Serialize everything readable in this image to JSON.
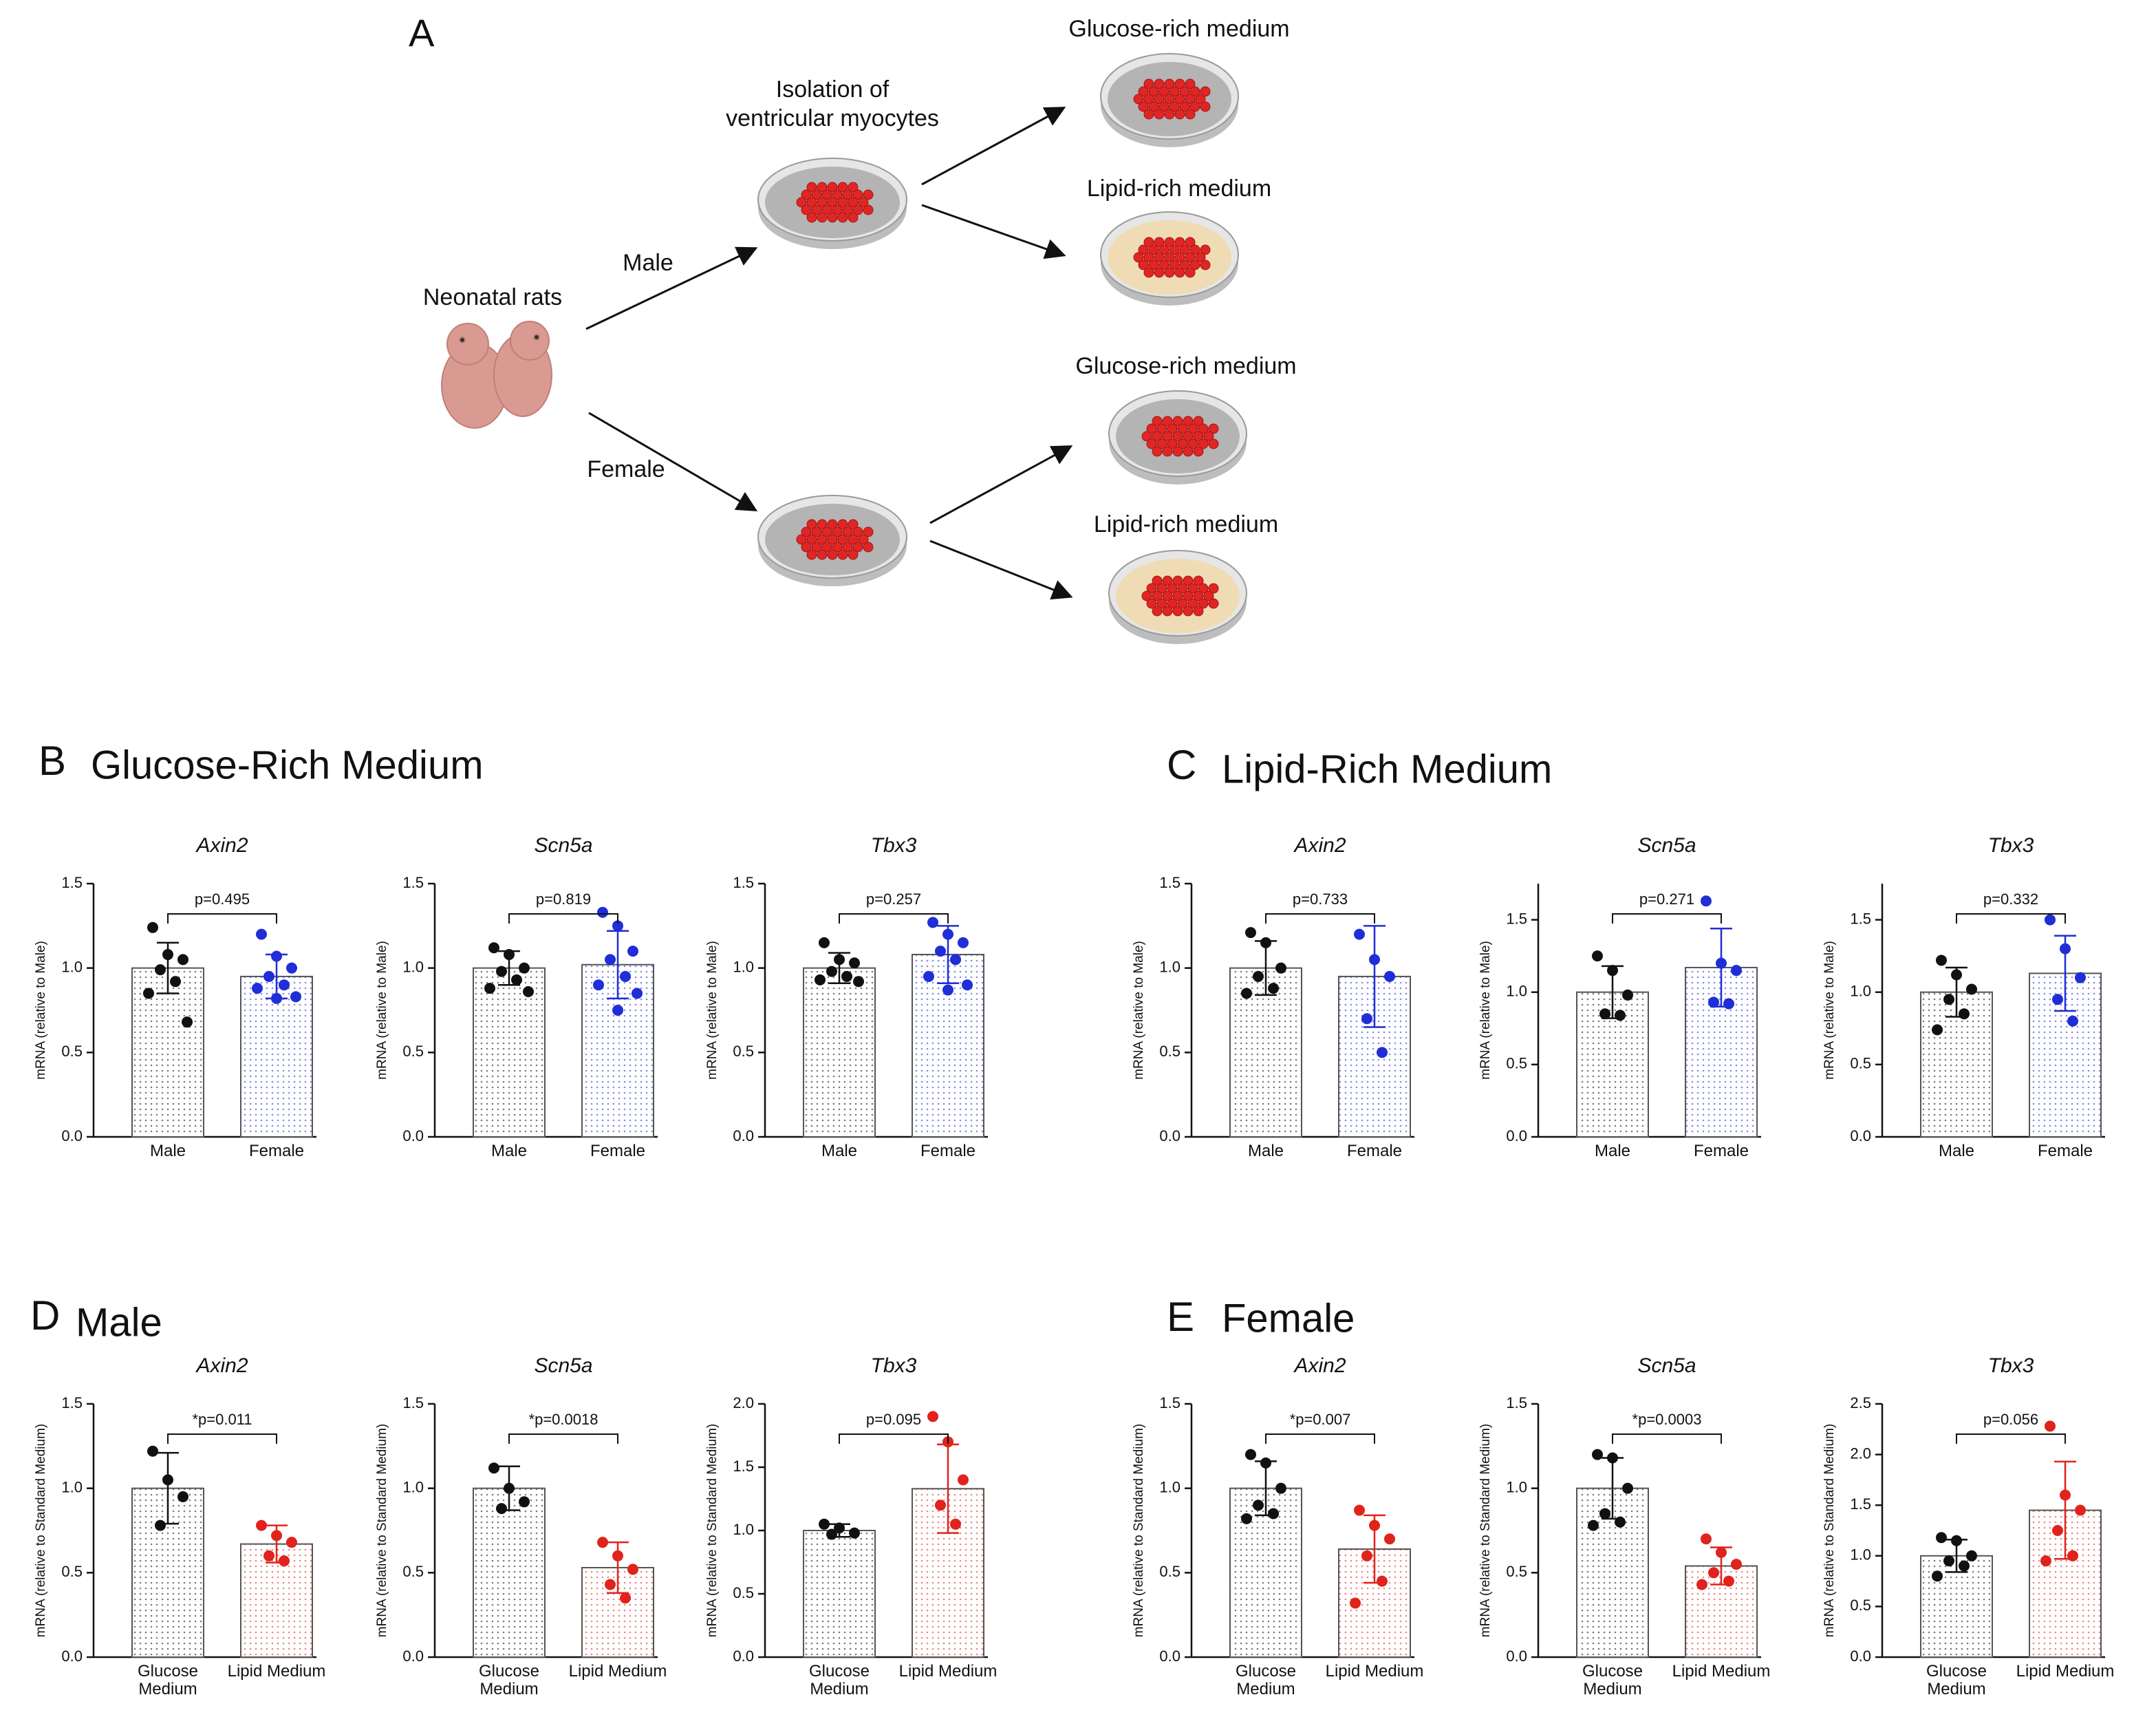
{
  "diagram": {
    "panel": "A",
    "source": "Neonatal rats",
    "branches": [
      "Male",
      "Female"
    ],
    "isolation": [
      "Isolation of",
      "ventricular myocytes"
    ],
    "media": [
      "Glucose-rich medium",
      "Lipid-rich medium",
      "Glucose-rich medium",
      "Lipid-rich medium"
    ]
  },
  "panels": [
    {
      "letter": "B",
      "title": "Glucose-Rich Medium"
    },
    {
      "letter": "C",
      "title": "Lipid-Rich Medium"
    },
    {
      "letter": "D",
      "title": "Male"
    },
    {
      "letter": "E",
      "title": "Female"
    }
  ],
  "chart_data": [
    {
      "type": "bar",
      "title": "Axin2",
      "annotation": "p=0.495",
      "ylabel": "mRNA  (relative to Male)",
      "categories": [
        "Male",
        "Female"
      ],
      "values": [
        1.0,
        0.95
      ],
      "errors": [
        0.15,
        0.13
      ],
      "points": [
        [
          1.24,
          1.08,
          1.05,
          0.99,
          0.92,
          0.85,
          0.68
        ],
        [
          1.2,
          1.07,
          1.0,
          0.95,
          0.9,
          0.88,
          0.83,
          0.82
        ]
      ],
      "colors": [
        "#111111",
        "#1f2ed6"
      ],
      "ylim": [
        0,
        1.5
      ],
      "yticks": [
        {
          "value": 0,
          "label": "0.0"
        },
        0.5,
        {
          "value": 1,
          "label": "1.0"
        },
        1.5
      ]
    },
    {
      "type": "bar",
      "title": "Scn5a",
      "annotation": "p=0.819",
      "ylabel": "mRNA  (relative to Male)",
      "categories": [
        "Male",
        "Female"
      ],
      "values": [
        1.0,
        1.02
      ],
      "errors": [
        0.1,
        0.2
      ],
      "points": [
        [
          1.12,
          1.08,
          1.0,
          0.98,
          0.93,
          0.88,
          0.86
        ],
        [
          1.33,
          1.25,
          1.1,
          1.05,
          0.95,
          0.9,
          0.85,
          0.75
        ]
      ],
      "colors": [
        "#111111",
        "#1f2ed6"
      ],
      "ylim": [
        0,
        1.5
      ],
      "yticks": [
        {
          "value": 0,
          "label": "0.0"
        },
        0.5,
        {
          "value": 1,
          "label": "1.0"
        },
        1.5
      ]
    },
    {
      "type": "bar",
      "title": "Tbx3",
      "annotation": "p=0.257",
      "ylabel": "mRNA  (relative to Male)",
      "categories": [
        "Male",
        "Female"
      ],
      "values": [
        1.0,
        1.08
      ],
      "errors": [
        0.09,
        0.17
      ],
      "points": [
        [
          1.15,
          1.05,
          1.03,
          0.98,
          0.95,
          0.93,
          0.92
        ],
        [
          1.27,
          1.2,
          1.15,
          1.1,
          1.05,
          0.95,
          0.9,
          0.87
        ]
      ],
      "colors": [
        "#111111",
        "#1f2ed6"
      ],
      "ylim": [
        0,
        1.5
      ],
      "yticks": [
        {
          "value": 0,
          "label": "0.0"
        },
        0.5,
        {
          "value": 1,
          "label": "1.0"
        },
        1.5
      ]
    },
    {
      "type": "bar",
      "title": "Axin2",
      "annotation": "p=0.733",
      "ylabel": "mRNA  (relative to Male)",
      "categories": [
        "Male",
        "Female"
      ],
      "values": [
        1.0,
        0.95
      ],
      "errors": [
        0.16,
        0.3
      ],
      "points": [
        [
          1.21,
          1.15,
          1.0,
          0.95,
          0.88,
          0.85
        ],
        [
          1.2,
          1.05,
          0.95,
          0.7,
          0.5
        ]
      ],
      "colors": [
        "#111111",
        "#1f2ed6"
      ],
      "ylim": [
        0,
        1.5
      ],
      "yticks": [
        {
          "value": 0,
          "label": "0.0"
        },
        0.5,
        {
          "value": 1,
          "label": "1.0"
        },
        1.5
      ]
    },
    {
      "type": "bar",
      "title": "Scn5a",
      "annotation": "p=0.271",
      "ylabel": "mRNA  (relative to Male)",
      "categories": [
        "Male",
        "Female"
      ],
      "values": [
        1.0,
        1.17
      ],
      "errors": [
        0.18,
        0.27
      ],
      "points": [
        [
          1.25,
          1.15,
          0.98,
          0.85,
          0.84
        ],
        [
          1.63,
          1.2,
          1.15,
          0.93,
          0.92
        ]
      ],
      "colors": [
        "#111111",
        "#1f2ed6"
      ],
      "ylim": [
        0,
        1.75
      ],
      "yticks": [
        {
          "value": 0,
          "label": "0.0"
        },
        0.5,
        {
          "value": 1,
          "label": "1.0"
        },
        1.5
      ]
    },
    {
      "type": "bar",
      "title": "Tbx3",
      "annotation": "p=0.332",
      "ylabel": "mRNA  (relative to Male)",
      "categories": [
        "Male",
        "Female"
      ],
      "values": [
        1.0,
        1.13
      ],
      "errors": [
        0.17,
        0.26
      ],
      "points": [
        [
          1.22,
          1.12,
          1.02,
          0.95,
          0.85,
          0.74
        ],
        [
          1.5,
          1.3,
          1.1,
          0.95,
          0.8
        ]
      ],
      "colors": [
        "#111111",
        "#1f2ed6"
      ],
      "ylim": [
        0,
        1.75
      ],
      "yticks": [
        {
          "value": 0,
          "label": "0.0"
        },
        0.5,
        {
          "value": 1,
          "label": "1.0"
        },
        1.5
      ]
    },
    {
      "type": "bar",
      "title": "Axin2",
      "annotation": "*p=0.011",
      "ylabel": "mRNA  (relative to Standard Medium)",
      "categories": [
        "Glucose Medium",
        "Lipid Medium"
      ],
      "values": [
        1.0,
        0.67
      ],
      "errors": [
        0.21,
        0.11
      ],
      "points": [
        [
          1.22,
          1.05,
          0.95,
          0.78
        ],
        [
          0.78,
          0.72,
          0.68,
          0.6,
          0.57
        ]
      ],
      "colors": [
        "#111111",
        "#e0231c"
      ],
      "ylim": [
        0,
        1.5
      ],
      "yticks": [
        {
          "value": 0,
          "label": "0.0"
        },
        0.5,
        {
          "value": 1,
          "label": "1.0"
        },
        1.5
      ]
    },
    {
      "type": "bar",
      "title": "Scn5a",
      "annotation": "*p=0.0018",
      "ylabel": "mRNA  (relative to Standard Medium)",
      "categories": [
        "Glucose Medium",
        "Lipid Medium"
      ],
      "values": [
        1.0,
        0.53
      ],
      "errors": [
        0.13,
        0.15
      ],
      "points": [
        [
          1.12,
          1.0,
          0.92,
          0.88
        ],
        [
          0.68,
          0.6,
          0.52,
          0.43,
          0.35
        ]
      ],
      "colors": [
        "#111111",
        "#e0231c"
      ],
      "ylim": [
        0,
        1.5
      ],
      "yticks": [
        {
          "value": 0,
          "label": "0.0"
        },
        0.5,
        {
          "value": 1,
          "label": "1.0"
        },
        1.5
      ]
    },
    {
      "type": "bar",
      "title": "Tbx3",
      "annotation": "p=0.095",
      "ylabel": "mRNA  (relative to Standard Medium)",
      "categories": [
        "Glucose Medium",
        "Lipid Medium"
      ],
      "values": [
        1.0,
        1.33
      ],
      "errors": [
        0.05,
        0.35
      ],
      "points": [
        [
          1.05,
          1.02,
          0.98,
          0.97
        ],
        [
          1.9,
          1.7,
          1.4,
          1.2,
          1.05
        ]
      ],
      "colors": [
        "#111111",
        "#e0231c"
      ],
      "ylim": [
        0,
        2
      ],
      "yticks": [
        {
          "value": 0,
          "label": "0.0"
        },
        0.5,
        {
          "value": 1,
          "label": "1.0"
        },
        1.5,
        {
          "value": 2,
          "label": "2.0"
        }
      ]
    },
    {
      "type": "bar",
      "title": "Axin2",
      "annotation": "*p=0.007",
      "ylabel": "mRNA  (relative to Standard Medium)",
      "categories": [
        "Glucose Medium",
        "Lipid Medium"
      ],
      "values": [
        1.0,
        0.64
      ],
      "errors": [
        0.16,
        0.2
      ],
      "points": [
        [
          1.2,
          1.15,
          1.0,
          0.9,
          0.85,
          0.82
        ],
        [
          0.87,
          0.78,
          0.7,
          0.6,
          0.45,
          0.32
        ]
      ],
      "colors": [
        "#111111",
        "#e0231c"
      ],
      "ylim": [
        0,
        1.5
      ],
      "yticks": [
        {
          "value": 0,
          "label": "0.0"
        },
        0.5,
        {
          "value": 1,
          "label": "1.0"
        },
        1.5
      ]
    },
    {
      "type": "bar",
      "title": "Scn5a",
      "annotation": "*p=0.0003",
      "ylabel": "mRNA  (relative to Standard Medium)",
      "categories": [
        "Glucose Medium",
        "Lipid Medium"
      ],
      "values": [
        1.0,
        0.54
      ],
      "errors": [
        0.18,
        0.11
      ],
      "points": [
        [
          1.2,
          1.18,
          1.0,
          0.85,
          0.8,
          0.78
        ],
        [
          0.7,
          0.62,
          0.55,
          0.5,
          0.45,
          0.43
        ]
      ],
      "colors": [
        "#111111",
        "#e0231c"
      ],
      "ylim": [
        0,
        1.5
      ],
      "yticks": [
        {
          "value": 0,
          "label": "0.0"
        },
        0.5,
        {
          "value": 1,
          "label": "1.0"
        },
        1.5
      ]
    },
    {
      "type": "bar",
      "title": "Tbx3",
      "annotation": "p=0.056",
      "ylabel": "mRNA  (relative to Standard Medium)",
      "categories": [
        "Glucose Medium",
        "Lipid Medium"
      ],
      "values": [
        1.0,
        1.45
      ],
      "errors": [
        0.16,
        0.48
      ],
      "points": [
        [
          1.18,
          1.15,
          1.0,
          0.95,
          0.9,
          0.8
        ],
        [
          2.28,
          1.6,
          1.45,
          1.25,
          1.0,
          0.95
        ]
      ],
      "colors": [
        "#111111",
        "#e0231c"
      ],
      "ylim": [
        0,
        2.5
      ],
      "yticks": [
        {
          "value": 0,
          "label": "0.0"
        },
        0.5,
        {
          "value": 1,
          "label": "1.0"
        },
        1.5,
        {
          "value": 2,
          "label": "2.0"
        },
        2.5
      ]
    }
  ]
}
